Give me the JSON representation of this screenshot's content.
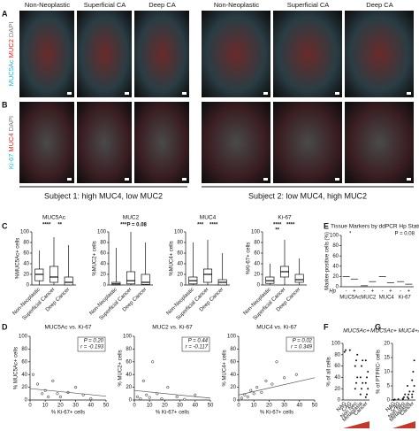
{
  "images": {
    "columns": [
      "Non-Neoplastic",
      "Superficial CA",
      "Deep CA",
      "Non-Neoplastic",
      "Superficial CA",
      "Deep CA"
    ],
    "rows": [
      {
        "label": "A",
        "stains": [
          {
            "text": "MUC5Ac",
            "color": "#2fb3c9"
          },
          {
            "text": "MUC2",
            "color": "#d42a2a"
          },
          {
            "text": "DAPI",
            "color": "#777777"
          }
        ]
      },
      {
        "label": "B",
        "stains": [
          {
            "text": "Ki-67",
            "color": "#2fb3c9"
          },
          {
            "text": "MUC4",
            "color": "#d42a2a"
          },
          {
            "text": "DAPI",
            "color": "#777777"
          }
        ]
      }
    ],
    "subjects": [
      "Subject 1: high MUC4, low MUC2",
      "Subject 2: low MUC4, high MUC2"
    ]
  },
  "panel_labels": [
    "C",
    "D",
    "E",
    "F",
    "G"
  ],
  "chart_data": [
    {
      "type": "box",
      "title": "MUC5Ac",
      "ylabel": "%MUC5Ac+ cells",
      "categories": [
        "Non-Neoplastic",
        "Superficial Cancer",
        "Deep Cancer"
      ],
      "boxes": [
        {
          "min": 0,
          "q1": 8,
          "median": 20,
          "q3": 30,
          "max": 65
        },
        {
          "min": 0,
          "q1": 5,
          "median": 15,
          "q3": 35,
          "max": 90
        },
        {
          "min": 0,
          "q1": 0,
          "median": 5,
          "q3": 15,
          "max": 75
        }
      ],
      "ylim": [
        0,
        100
      ],
      "yticks": [
        0,
        20,
        40,
        60,
        80,
        100
      ],
      "annotations": [
        "****",
        "**"
      ]
    },
    {
      "type": "box",
      "title": "MUC2",
      "ylabel": "%MUC2+ cells",
      "categories": [
        "Non-Neoplastic",
        "Superficial Cancer",
        "Deep Cancer"
      ],
      "boxes": [
        {
          "min": 0,
          "q1": 0,
          "median": 2,
          "q3": 5,
          "max": 70
        },
        {
          "min": 0,
          "q1": 2,
          "median": 8,
          "q3": 25,
          "max": 100
        },
        {
          "min": 0,
          "q1": 1,
          "median": 5,
          "q3": 20,
          "max": 80
        }
      ],
      "ylim": [
        0,
        100
      ],
      "yticks": [
        0,
        20,
        40,
        60,
        80,
        100
      ],
      "annotations": [
        "***",
        "P = 0.08"
      ]
    },
    {
      "type": "box",
      "title": "MUC4",
      "ylabel": "%MUC4+ cells",
      "categories": [
        "Non-Neoplastic",
        "Superficial Cancer",
        "Deep Cancer"
      ],
      "boxes": [
        {
          "min": 0,
          "q1": 2,
          "median": 8,
          "q3": 15,
          "max": 80
        },
        {
          "min": 0,
          "q1": 5,
          "median": 20,
          "q3": 30,
          "max": 85
        },
        {
          "min": 0,
          "q1": 0,
          "median": 5,
          "q3": 10,
          "max": 60
        }
      ],
      "ylim": [
        0,
        100
      ],
      "yticks": [
        0,
        20,
        40,
        60,
        80,
        100
      ],
      "annotations": [
        "***",
        "****"
      ]
    },
    {
      "type": "box",
      "title": "Ki-67",
      "ylabel": "%Ki-67+ cells",
      "categories": [
        "Non-Neoplastic",
        "Superficial Cancer",
        "Deep Cancer"
      ],
      "boxes": [
        {
          "min": 0,
          "q1": 3,
          "median": 8,
          "q3": 15,
          "max": 40
        },
        {
          "min": 0,
          "q1": 15,
          "median": 25,
          "q3": 35,
          "max": 85
        },
        {
          "min": 0,
          "q1": 5,
          "median": 10,
          "q3": 20,
          "max": 50
        }
      ],
      "ylim": [
        0,
        100
      ],
      "yticks": [
        0,
        20,
        40,
        60,
        80,
        100
      ],
      "annotations": [
        "****",
        "****",
        "**"
      ]
    },
    {
      "type": "hp",
      "title": "Tissue Markers by ddPCR Hp Status",
      "ylabel": "Marker-positive cells (%)",
      "hp_label": "Hp",
      "categories": [
        "MUC5Ac",
        "MUC2",
        "MUC4",
        "Ki-67"
      ],
      "series": [
        {
          "name": "-",
          "color": "#111111",
          "values": [
            20,
            2,
            20,
            10
          ]
        },
        {
          "name": "+",
          "color": "#111111",
          "values": [
            15,
            10,
            8,
            5
          ]
        }
      ],
      "ylim": [
        0,
        100
      ],
      "yticks": [
        0,
        20,
        40,
        60,
        80,
        100
      ],
      "annotations": [
        "*",
        "P = 0.08"
      ]
    },
    {
      "type": "scatter",
      "title": "MUC5Ac vs. Ki-67",
      "xlabel": "% Ki-67+ cells",
      "ylabel": "% MUC5Ac+ cells",
      "x": [
        2,
        5,
        8,
        10,
        12,
        15,
        18,
        20,
        25,
        30,
        35,
        40
      ],
      "y": [
        40,
        25,
        10,
        15,
        5,
        30,
        10,
        5,
        12,
        20,
        8,
        2
      ],
      "trend": [
        18,
        6
      ],
      "xlim": [
        0,
        50
      ],
      "xticks": [
        0,
        10,
        20,
        30,
        40,
        50
      ],
      "ylim": [
        0,
        100
      ],
      "yticks": [
        0,
        20,
        40,
        60,
        80,
        100
      ],
      "annotations": [
        "P = 0.20",
        "r = -0.193"
      ]
    },
    {
      "type": "scatter",
      "title": "MUC2 vs. Ki-67",
      "xlabel": "% Ki-67+ cells",
      "ylabel": "% MUC2+ cells",
      "x": [
        2,
        4,
        6,
        8,
        10,
        12,
        15,
        18,
        22,
        28,
        33,
        40
      ],
      "y": [
        5,
        2,
        30,
        8,
        4,
        60,
        10,
        2,
        20,
        5,
        1,
        8
      ],
      "trend": [
        15,
        3
      ],
      "xlim": [
        0,
        50
      ],
      "xticks": [
        0,
        10,
        20,
        30,
        40,
        50
      ],
      "ylim": [
        0,
        100
      ],
      "yticks": [
        0,
        20,
        40,
        60,
        80,
        100
      ],
      "annotations": [
        "P = 0.44",
        "r = -0.117"
      ]
    },
    {
      "type": "scatter",
      "title": "MUC4 vs. Ki-67",
      "xlabel": "% Ki-67+ cells",
      "ylabel": "% MUC4+ cells",
      "x": [
        2,
        4,
        6,
        8,
        10,
        12,
        15,
        18,
        22,
        25,
        30,
        38
      ],
      "y": [
        3,
        8,
        5,
        15,
        10,
        20,
        12,
        30,
        25,
        60,
        35,
        40
      ],
      "trend": [
        8,
        35
      ],
      "xlim": [
        0,
        50
      ],
      "xticks": [
        0,
        10,
        20,
        30,
        40,
        50
      ],
      "ylim": [
        0,
        100
      ],
      "yticks": [
        0,
        20,
        40,
        60,
        80,
        100
      ],
      "annotations": [
        "P = 0.02",
        "r = 0.349"
      ]
    },
    {
      "type": "dots",
      "title": "MUC5Ac+",
      "ylabel": "% of all cells",
      "categories": [
        "NAG",
        "CAG",
        "Non Neo",
        "Metaplasia",
        "Cancer"
      ],
      "points": [
        [
          85,
          88
        ],
        [
          88
        ],
        [
          20,
          30,
          40,
          60,
          70,
          80
        ],
        [
          10,
          20,
          30,
          40,
          60,
          70
        ],
        [
          5,
          10,
          20,
          30,
          40,
          50,
          70
        ]
      ],
      "color": "#111111",
      "ylim": [
        0,
        100
      ],
      "yticks": [
        0,
        20,
        40,
        60,
        80,
        100
      ]
    },
    {
      "type": "dots",
      "title": "MUC5Ac+ MUC4+AREG+",
      "ylabel": "% of PTPRC- cells",
      "categories": [
        "NAG",
        "CAG",
        "Non Neo",
        "Metaplasia",
        "Cancer"
      ],
      "points": [
        [
          0,
          0.2
        ],
        [
          0.3
        ],
        [
          0.5,
          1,
          2,
          0.2
        ],
        [
          1,
          2,
          3,
          5,
          0.5
        ],
        [
          1,
          3,
          5,
          7,
          10,
          14,
          2
        ]
      ],
      "color": "#111111",
      "ylim": [
        0,
        20
      ],
      "yticks": [
        0,
        5,
        10,
        15,
        20
      ]
    }
  ]
}
